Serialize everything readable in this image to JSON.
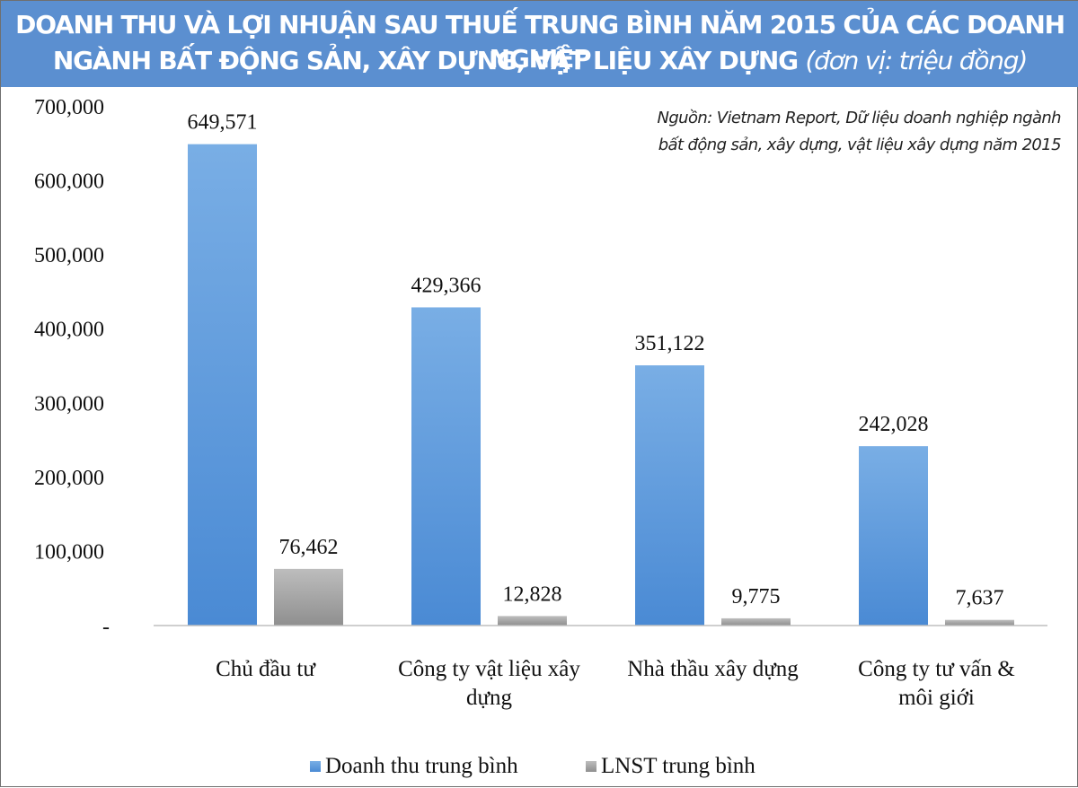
{
  "header": {
    "title_line1": "DOANH THU VÀ LỢI NHUẬN SAU THUẾ TRUNG BÌNH NĂM 2015 CỦA CÁC DOANH NGHIỆP",
    "title_line2": "NGÀNH BẤT ĐỘNG SẢN, XÂY DỰNG, VẬT LIỆU XÂY DỰNG",
    "unit": "(đơn vị: triệu đồng)"
  },
  "source": {
    "line1": "Nguồn: Vietnam Report, Dữ liệu doanh nghiệp ngành",
    "line2": "bất động sản, xây dựng, vật liệu xây dựng năm 2015"
  },
  "colors": {
    "header_bg": "#5b8fd0",
    "revenue_top": "#79aee5",
    "revenue_bottom": "#4a8ad4",
    "profit_top": "#bdbdbd",
    "profit_bottom": "#8f8f8f",
    "axis": "#bfbfbf"
  },
  "chart_data": {
    "type": "bar",
    "categories": [
      [
        "Chủ đầu tư"
      ],
      [
        "Công ty vật liệu xây",
        "dựng"
      ],
      [
        "Nhà thầu xây dựng"
      ],
      [
        "Công ty tư vấn &",
        "môi giới"
      ]
    ],
    "series": [
      {
        "name": "Doanh thu trung bình",
        "values": [
          649571,
          429366,
          351122,
          242028
        ],
        "labels": [
          "649,571",
          "429,366",
          "351,122",
          "242,028"
        ]
      },
      {
        "name": "LNST trung bình",
        "values": [
          76462,
          12828,
          9775,
          7637
        ],
        "labels": [
          "76,462",
          "12,828",
          "9,775",
          "7,637"
        ]
      }
    ],
    "yticks": [
      0,
      100000,
      200000,
      300000,
      400000,
      500000,
      600000,
      700000
    ],
    "ytick_labels": [
      "-",
      "100,000",
      "200,000",
      "300,000",
      "400,000",
      "500,000",
      "600,000",
      "700,000"
    ],
    "ylim": [
      0,
      700000
    ],
    "grid": false,
    "legend": "bottom"
  }
}
